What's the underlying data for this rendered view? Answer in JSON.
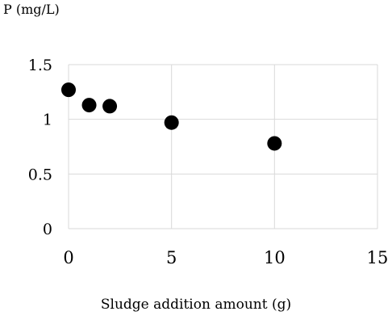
{
  "chart_data": {
    "type": "scatter",
    "title": "",
    "xlabel": "Sludge addition amount (g)",
    "ylabel": "P (mg/L)",
    "xlim": [
      0,
      15
    ],
    "ylim": [
      0,
      1.5
    ],
    "xticks": [
      "0",
      "5",
      "10",
      "15"
    ],
    "yticks": [
      "0",
      "0.5",
      "1",
      "1.5"
    ],
    "grid": true,
    "marker_color": "#000000",
    "series": [
      {
        "x": [
          0,
          1,
          2,
          5,
          10
        ],
        "y": [
          1.27,
          1.13,
          1.12,
          0.97,
          0.78
        ]
      }
    ]
  }
}
